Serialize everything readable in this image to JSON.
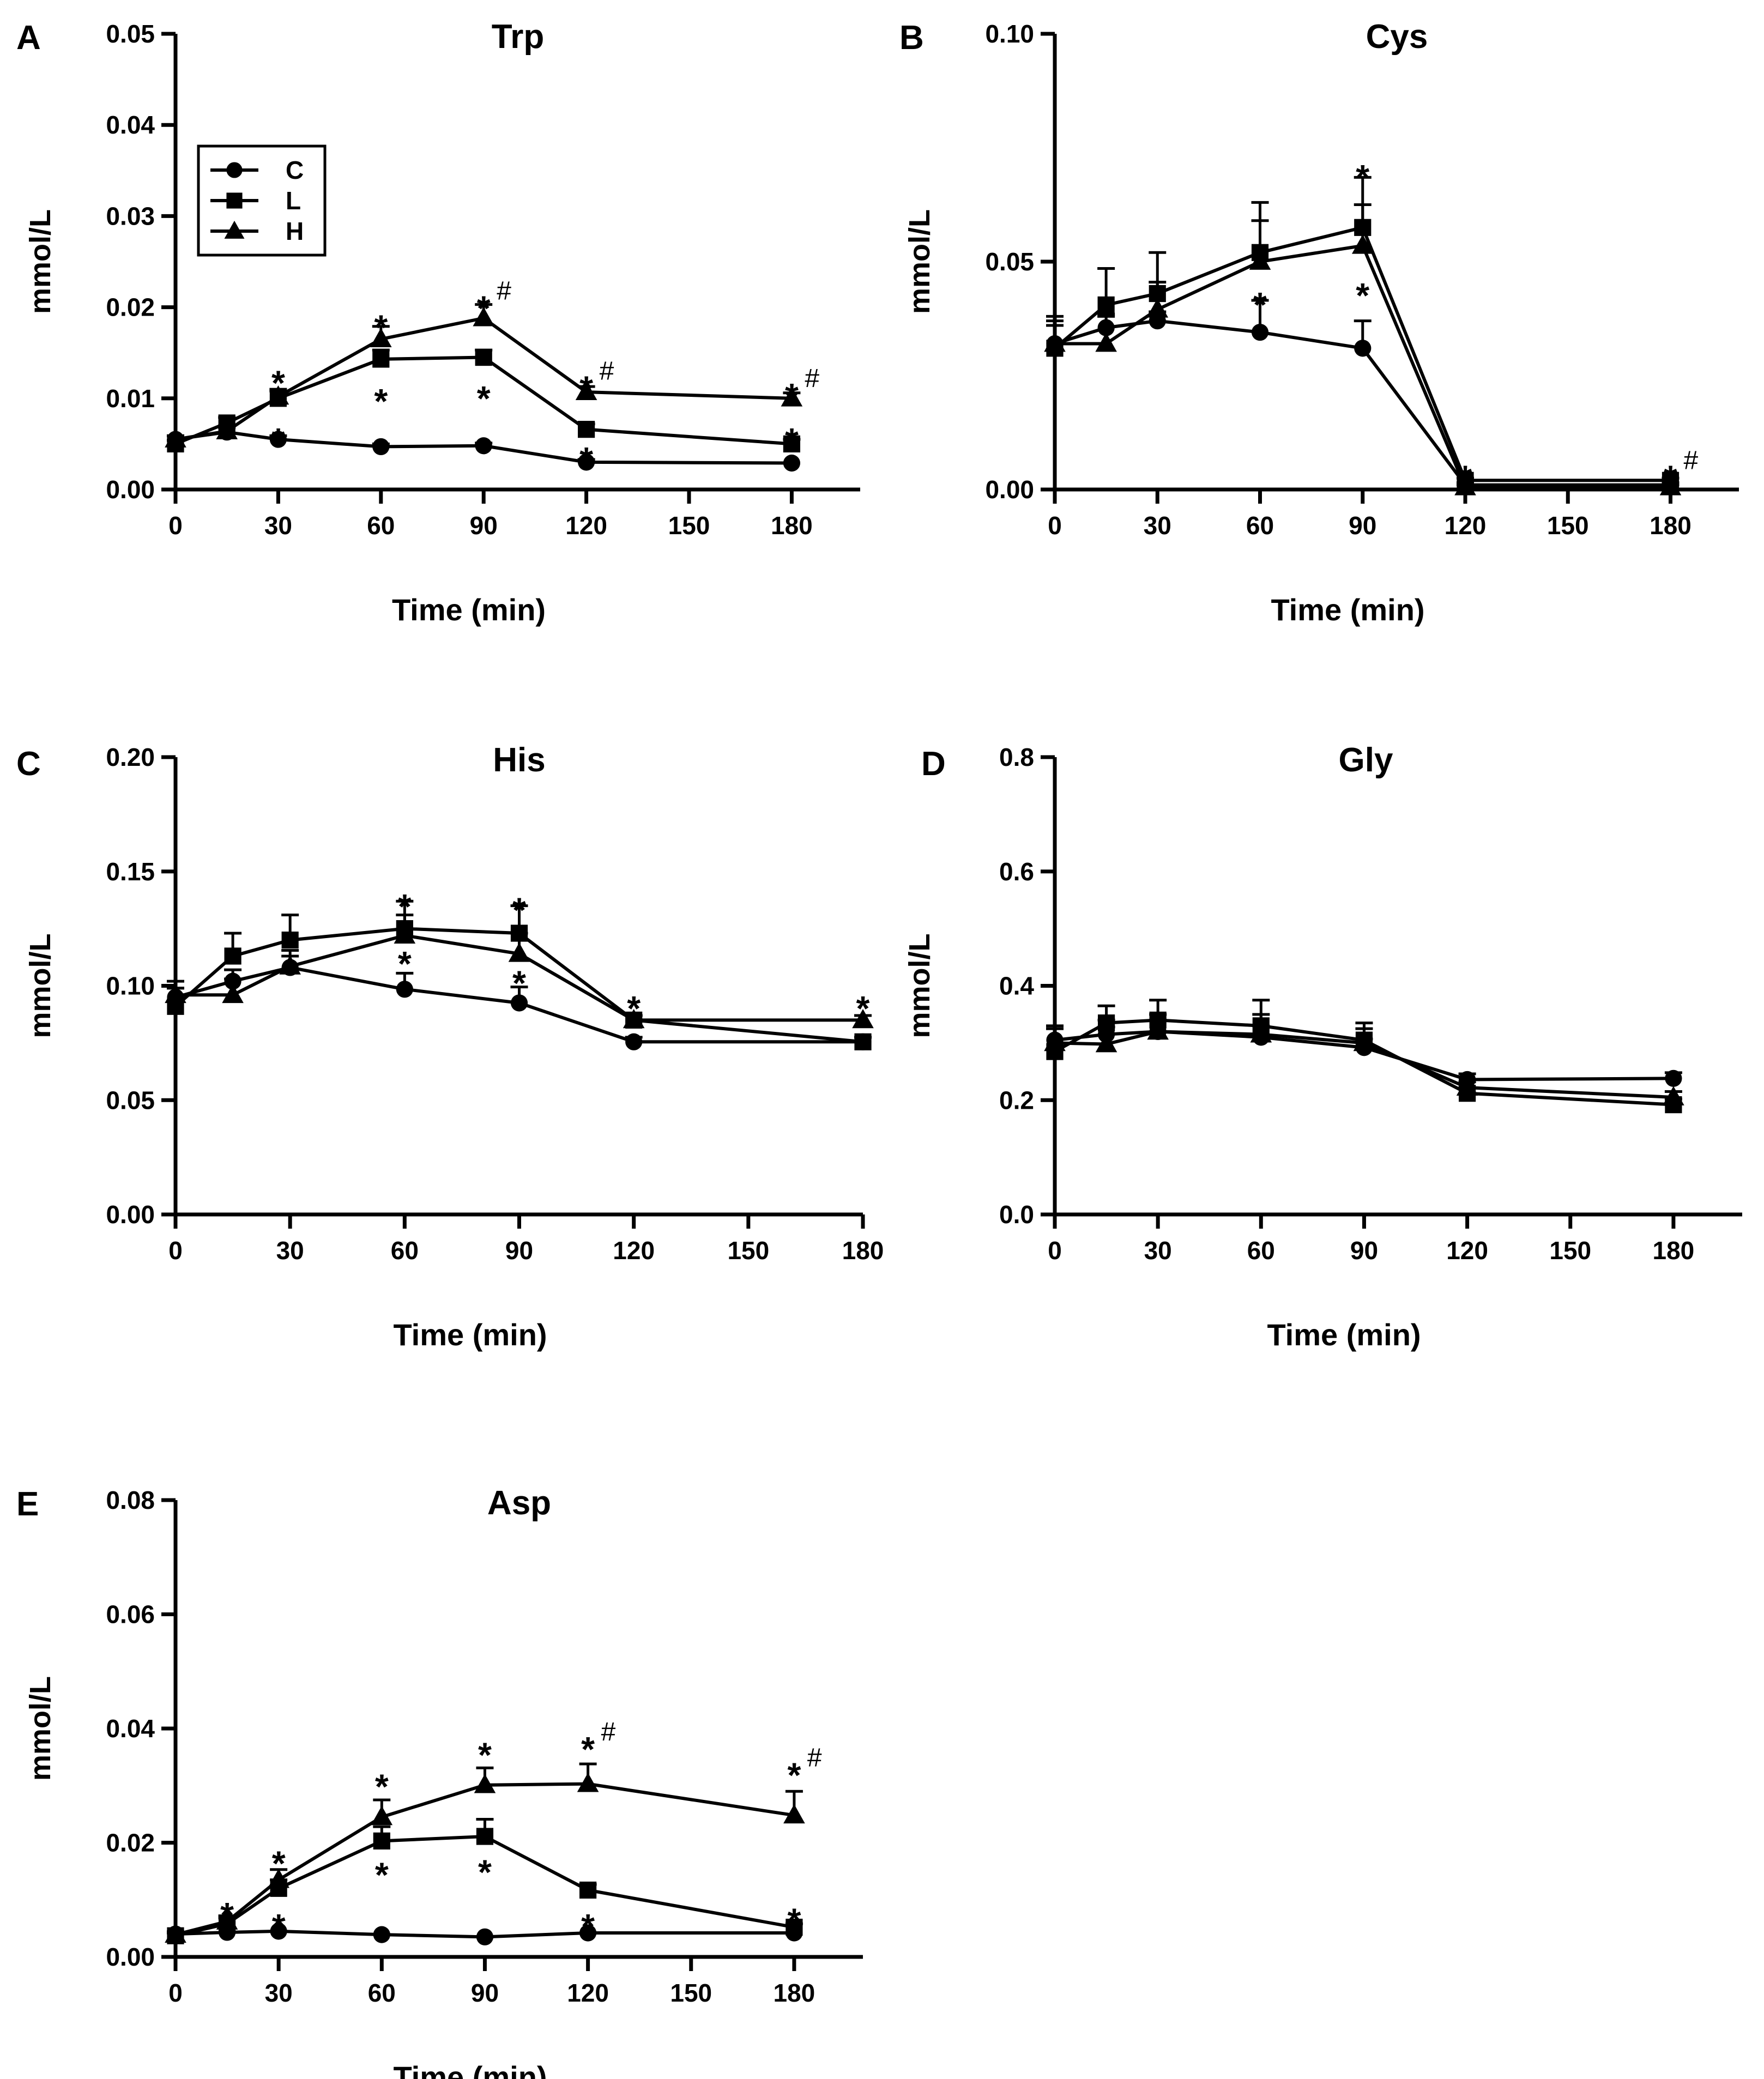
{
  "chart_data": [
    {
      "panel": "A",
      "type": "line",
      "title": "Trp",
      "xlabel": "Time (min)",
      "ylabel": "mmol/L",
      "xlim": [
        0,
        200
      ],
      "ylim": [
        0,
        0.05
      ],
      "xticks": [
        0,
        30,
        60,
        90,
        120,
        150,
        180
      ],
      "xtick_labels": [
        "0",
        "30",
        "60",
        "90",
        "120",
        "150",
        "180"
      ],
      "yticks": [
        0,
        0.01,
        0.02,
        0.03,
        0.04,
        0.05
      ],
      "ytick_labels": [
        "0.00",
        "0.01",
        "0.02",
        "0.03",
        "0.04",
        "0.05"
      ],
      "legend": {
        "position": "top-left",
        "entries": [
          "C",
          "L",
          "H"
        ]
      },
      "x": [
        0,
        15,
        30,
        60,
        90,
        120,
        180
      ],
      "series": [
        {
          "name": "C",
          "marker": "circle",
          "values": [
            0.0055,
            0.0063,
            0.0055,
            0.0047,
            0.0048,
            0.003,
            0.0029
          ],
          "err": [
            0.0004,
            0.0005,
            0.0004,
            0.0003,
            0.0003,
            0.0003,
            0.0002
          ]
        },
        {
          "name": "L",
          "marker": "square",
          "values": [
            0.005,
            0.0073,
            0.01,
            0.0143,
            0.0145,
            0.0066,
            0.005
          ],
          "err": [
            0.0004,
            0.0006,
            0.0008,
            0.001,
            0.0008,
            0.0006,
            0.0005
          ]
        },
        {
          "name": "H",
          "marker": "triangle",
          "values": [
            0.0055,
            0.0064,
            0.0102,
            0.0165,
            0.0188,
            0.0107,
            0.01
          ],
          "err": [
            0.0004,
            0.0006,
            0.0008,
            0.0014,
            0.0015,
            0.0006,
            0.0006
          ]
        }
      ],
      "annotations": [
        {
          "x": 30,
          "y": 0.0124,
          "text": "*"
        },
        {
          "x": 30,
          "y": 0.0061,
          "text": "*"
        },
        {
          "x": 60,
          "y": 0.0185,
          "text": "*"
        },
        {
          "x": 60,
          "y": 0.0104,
          "text": "*"
        },
        {
          "x": 90,
          "y": 0.0206,
          "text": "*",
          "sup": "#"
        },
        {
          "x": 90,
          "y": 0.0107,
          "text": "*"
        },
        {
          "x": 120,
          "y": 0.0118,
          "text": "*",
          "sup": "#"
        },
        {
          "x": 120,
          "y": 0.004,
          "text": "*"
        },
        {
          "x": 180,
          "y": 0.011,
          "text": "*",
          "sup": "#"
        },
        {
          "x": 180,
          "y": 0.0061,
          "text": "*"
        }
      ]
    },
    {
      "panel": "B",
      "type": "line",
      "title": "Cys",
      "xlabel": "Time (min)",
      "ylabel": "mmol/L",
      "xlim": [
        0,
        200
      ],
      "ylim": [
        0,
        0.1
      ],
      "xticks": [
        0,
        30,
        60,
        90,
        120,
        150,
        180
      ],
      "xtick_labels": [
        "0",
        "30",
        "60",
        "90",
        "120",
        "150",
        "180"
      ],
      "yticks": [
        0,
        0.05,
        0.1
      ],
      "ytick_labels": [
        "0.00",
        "0.05",
        "0.10"
      ],
      "x": [
        0,
        15,
        30,
        60,
        90,
        120,
        180
      ],
      "series": [
        {
          "name": "C",
          "marker": "circle",
          "values": [
            0.032,
            0.0355,
            0.037,
            0.0345,
            0.031,
            0.001,
            0.001
          ],
          "err": [
            0.004,
            0.003,
            0.002,
            0.007,
            0.006,
            0.0005,
            0.0005
          ]
        },
        {
          "name": "L",
          "marker": "square",
          "values": [
            0.031,
            0.0405,
            0.043,
            0.052,
            0.0575,
            0.002,
            0.002
          ],
          "err": [
            0.006,
            0.008,
            0.009,
            0.011,
            0.011,
            0.0005,
            0.0005
          ]
        },
        {
          "name": "H",
          "marker": "triangle",
          "values": [
            0.032,
            0.032,
            0.0395,
            0.05,
            0.0535,
            0.0005,
            0.0005
          ],
          "err": [
            0.006,
            0.006,
            0.006,
            0.009,
            0.009,
            0.0005,
            0.0005
          ]
        }
      ],
      "annotations": [
        {
          "x": 90,
          "y": 0.07,
          "text": "*"
        },
        {
          "x": 90,
          "y": 0.044,
          "text": "*"
        },
        {
          "x": 60,
          "y": 0.042,
          "text": "*"
        },
        {
          "x": 120,
          "y": 0.004,
          "text": "*"
        },
        {
          "x": 180,
          "y": 0.004,
          "text": "*",
          "sup": "#"
        }
      ]
    },
    {
      "panel": "C",
      "type": "line",
      "title": "His",
      "xlabel": "Time (min)",
      "ylabel": "mmol/L",
      "xlim": [
        0,
        180
      ],
      "ylim": [
        0,
        0.2
      ],
      "xticks": [
        0,
        30,
        60,
        90,
        120,
        150,
        180
      ],
      "xtick_labels": [
        "0",
        "30",
        "60",
        "90",
        "120",
        "150",
        "180"
      ],
      "yticks": [
        0,
        0.05,
        0.1,
        0.15,
        0.2
      ],
      "ytick_labels": [
        "0.00",
        "0.05",
        "0.10",
        "0.15",
        "0.20"
      ],
      "x": [
        0,
        15,
        30,
        60,
        90,
        120,
        180
      ],
      "series": [
        {
          "name": "C",
          "marker": "circle",
          "values": [
            0.095,
            0.102,
            0.108,
            0.0985,
            0.0925,
            0.0755,
            0.0755
          ],
          "err": [
            0.004,
            0.005,
            0.005,
            0.007,
            0.007,
            0.002,
            0.002
          ]
        },
        {
          "name": "L",
          "marker": "square",
          "values": [
            0.091,
            0.113,
            0.12,
            0.125,
            0.123,
            0.085,
            0.0755
          ],
          "err": [
            0.008,
            0.01,
            0.011,
            0.012,
            0.012,
            0.002,
            0.002
          ]
        },
        {
          "name": "H",
          "marker": "triangle",
          "values": [
            0.096,
            0.096,
            0.1085,
            0.122,
            0.114,
            0.085,
            0.085
          ],
          "err": [
            0.006,
            0.007,
            0.007,
            0.009,
            0.009,
            0.002,
            0.002
          ]
        }
      ],
      "annotations": [
        {
          "x": 60,
          "y": 0.1375,
          "text": "*"
        },
        {
          "x": 60,
          "y": 0.1125,
          "text": "*"
        },
        {
          "x": 90,
          "y": 0.136,
          "text": "*"
        },
        {
          "x": 90,
          "y": 0.104,
          "text": "*"
        },
        {
          "x": 120,
          "y": 0.093,
          "text": "*"
        },
        {
          "x": 180,
          "y": 0.093,
          "text": "*"
        }
      ]
    },
    {
      "panel": "D",
      "type": "line",
      "title": "Gly",
      "xlabel": "Time (min)",
      "ylabel": "mmol/L",
      "xlim": [
        0,
        200
      ],
      "ylim": [
        0,
        0.8
      ],
      "xticks": [
        0,
        30,
        60,
        90,
        120,
        150,
        180
      ],
      "xtick_labels": [
        "0",
        "30",
        "60",
        "90",
        "120",
        "150",
        "180"
      ],
      "yticks": [
        0,
        0.2,
        0.4,
        0.6,
        0.8
      ],
      "ytick_labels": [
        "0.0",
        "0.2",
        "0.4",
        "0.6",
        "0.8"
      ],
      "x": [
        0,
        15,
        30,
        60,
        90,
        120,
        180
      ],
      "series": [
        {
          "name": "C",
          "marker": "circle",
          "values": [
            0.305,
            0.315,
            0.32,
            0.31,
            0.292,
            0.236,
            0.238
          ],
          "err": [
            0.02,
            0.025,
            0.02,
            0.02,
            0.015,
            0.01,
            0.01
          ]
        },
        {
          "name": "L",
          "marker": "square",
          "values": [
            0.285,
            0.335,
            0.34,
            0.33,
            0.305,
            0.212,
            0.192
          ],
          "err": [
            0.04,
            0.03,
            0.035,
            0.045,
            0.03,
            0.01,
            0.01
          ]
        },
        {
          "name": "H",
          "marker": "triangle",
          "values": [
            0.3,
            0.298,
            0.32,
            0.315,
            0.3,
            0.222,
            0.205
          ],
          "err": [
            0.03,
            0.03,
            0.03,
            0.035,
            0.025,
            0.01,
            0.01
          ]
        }
      ],
      "annotations": []
    },
    {
      "panel": "E",
      "type": "line",
      "title": "Asp",
      "xlabel": "Time (min)",
      "ylabel": "mmol/L",
      "xlim": [
        0,
        200
      ],
      "ylim": [
        0,
        0.08
      ],
      "xticks": [
        0,
        30,
        60,
        90,
        120,
        150,
        180
      ],
      "xtick_labels": [
        "0",
        "30",
        "60",
        "90",
        "120",
        "150",
        "180"
      ],
      "yticks": [
        0,
        0.02,
        0.04,
        0.06,
        0.08
      ],
      "ytick_labels": [
        "0.00",
        "0.02",
        "0.04",
        "0.06",
        "0.08"
      ],
      "x": [
        0,
        15,
        30,
        60,
        90,
        120,
        180
      ],
      "series": [
        {
          "name": "C",
          "marker": "circle",
          "values": [
            0.004,
            0.0043,
            0.0045,
            0.0039,
            0.0035,
            0.0042,
            0.0042
          ],
          "err": [
            0.0003,
            0.0003,
            0.0003,
            0.0003,
            0.0003,
            0.0003,
            0.0003
          ]
        },
        {
          "name": "L",
          "marker": "square",
          "values": [
            0.0037,
            0.0058,
            0.012,
            0.0203,
            0.0211,
            0.0117,
            0.0052
          ],
          "err": [
            0.0005,
            0.001,
            0.0015,
            0.0025,
            0.003,
            0.001,
            0.0006
          ]
        },
        {
          "name": "H",
          "marker": "triangle",
          "values": [
            0.0039,
            0.0062,
            0.0135,
            0.0245,
            0.0301,
            0.0303,
            0.0248
          ],
          "err": [
            0.0005,
            0.001,
            0.0018,
            0.003,
            0.003,
            0.0035,
            0.0042
          ]
        }
      ],
      "annotations": [
        {
          "x": 15,
          "y": 0.0085,
          "text": "*"
        },
        {
          "x": 30,
          "y": 0.0175,
          "text": "*"
        },
        {
          "x": 30,
          "y": 0.0065,
          "text": "*"
        },
        {
          "x": 60,
          "y": 0.031,
          "text": "*"
        },
        {
          "x": 60,
          "y": 0.0155,
          "text": "*"
        },
        {
          "x": 90,
          "y": 0.0365,
          "text": "*"
        },
        {
          "x": 90,
          "y": 0.016,
          "text": "*"
        },
        {
          "x": 120,
          "y": 0.0375,
          "text": "*",
          "sup": "#"
        },
        {
          "x": 120,
          "y": 0.0065,
          "text": "*"
        },
        {
          "x": 180,
          "y": 0.033,
          "text": "*",
          "sup": "#"
        },
        {
          "x": 180,
          "y": 0.0075,
          "text": "*"
        }
      ]
    }
  ]
}
